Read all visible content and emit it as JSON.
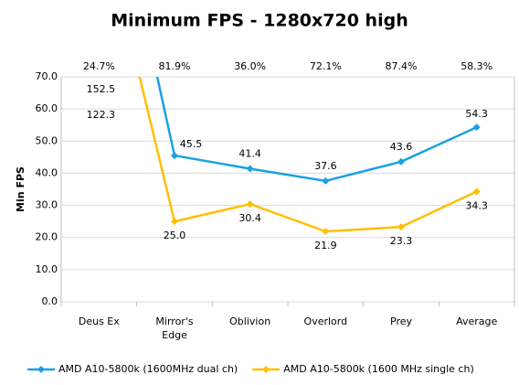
{
  "chart_data": {
    "type": "line",
    "title": "Minimum FPS - 1280x720 high",
    "y_label": "Min FPS",
    "categories": [
      "Deus Ex",
      "Mirror's Edge",
      "Oblivion",
      "Overlord",
      "Prey",
      "Average"
    ],
    "top_labels": [
      "24.7%",
      "81.9%",
      "36.0%",
      "72.1%",
      "87.4%",
      "58.3%"
    ],
    "series": [
      {
        "name": "AMD A10-5800k (1600MHz dual ch)",
        "color": "#1ba1e2",
        "values": [
          152.5,
          45.5,
          41.4,
          37.6,
          43.6,
          54.3
        ],
        "value_labels": [
          "152.5",
          "45.5",
          "41.4",
          "37.6",
          "43.6",
          "54.3"
        ]
      },
      {
        "name": "AMD A10-5800k (1600 MHz single ch)",
        "color": "#ffc000",
        "values": [
          122.3,
          25.0,
          30.4,
          21.9,
          23.3,
          34.3
        ],
        "value_labels": [
          "122.3",
          "25.0",
          "30.4",
          "21.9",
          "23.3",
          "34.3"
        ]
      }
    ],
    "ylim": [
      0,
      70
    ],
    "yticks": [
      {
        "value": 0,
        "label": "0.0"
      },
      {
        "value": 10,
        "label": "10.0"
      },
      {
        "value": 20,
        "label": "20.0"
      },
      {
        "value": 30,
        "label": "30.0"
      },
      {
        "value": 40,
        "label": "40.0"
      },
      {
        "value": 50,
        "label": "50.0"
      },
      {
        "value": 60,
        "label": "60.0"
      },
      {
        "value": 70,
        "label": "70.0"
      }
    ],
    "grid": true
  }
}
